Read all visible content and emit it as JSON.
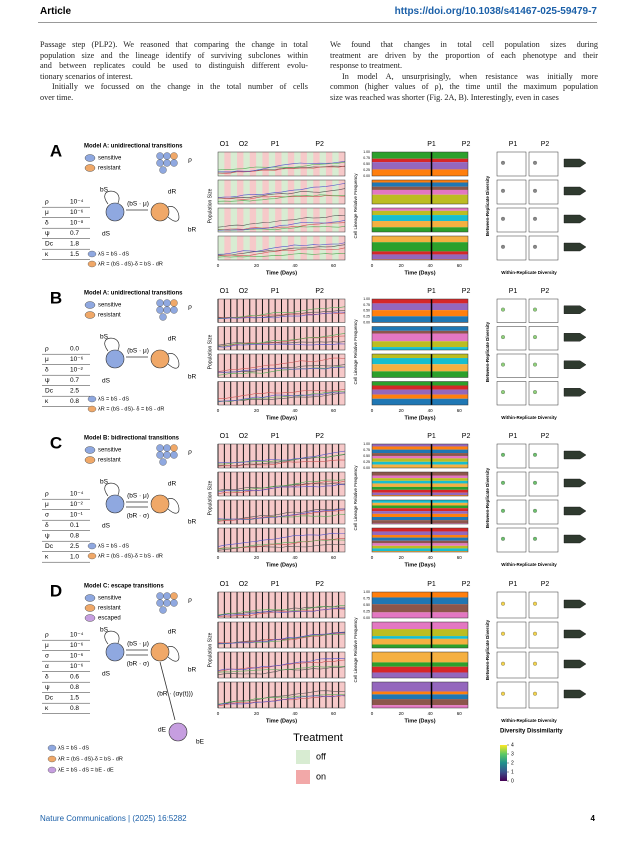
{
  "header": {
    "section": "Article",
    "doi": "https://doi.org/10.1038/s41467-025-59479-7"
  },
  "body": {
    "left": [
      {
        "lines": [
          "Passage step (PLP2). We reasoned that comparing the change in total",
          "population size and the lineage identify of surviving subclones within",
          "and between replicates could be used to distinguish different evolu-",
          "tionary scenarios of interest."
        ]
      },
      {
        "lines": [
          "Initially we focussed on the change in the total number of cells",
          "over time."
        ]
      }
    ],
    "right": [
      {
        "lines": [
          "We found that changes in total cell population sizes during",
          "treatment are driven by the proportion of each phenotype and their",
          "response to treatment."
        ]
      },
      {
        "lines": [
          "In model A, unsurprisingly, when resistance was initially more",
          "common (higher values of ρ), the time until the maximum population",
          "size was reached was shorter (Fig. 2A, B). Interestingly, even in cases"
        ]
      }
    ]
  },
  "figure": {
    "axes": {
      "population": "Population Size",
      "time": "Time (Days)",
      "lineage": "Cell Lineage Relative Frequency",
      "between": "Between-Replicate Diversity",
      "within": "Within-Replicate Diversity"
    },
    "x_ticks": [
      "0",
      "20",
      "40",
      "60"
    ],
    "lineage_ticks": [
      "1.00",
      "0.75",
      "0.50",
      "0.25",
      "0.00"
    ],
    "panels": [
      {
        "letter": "A",
        "title": "Model A: unidirectional transitions",
        "legend": [
          {
            "label": "sensitive",
            "color": "#8fa8e0"
          },
          {
            "label": "resistant",
            "color": "#f0a868"
          }
        ],
        "params": [
          [
            "ρ",
            "10⁻⁴"
          ],
          [
            "μ",
            "10⁻⁶"
          ],
          [
            "δ",
            "10⁻⁸"
          ],
          [
            "ψ",
            "0.7"
          ],
          [
            "Dc",
            "1.8"
          ],
          [
            "κ",
            "1.5"
          ]
        ],
        "schematic": {
          "rho": "ρ",
          "b_s": "bS",
          "d_s": "dS",
          "d_r": "dR",
          "b_r": "bR",
          "mu": "(bS · μ)"
        },
        "formulas": [
          "λS = bS - dS",
          "λR = (bS - dS)-δ = bS - dR"
        ],
        "pop_top": [
          "O1",
          "O2",
          "P1",
          "P2"
        ],
        "lin_top": [
          "P1",
          "P2"
        ],
        "div_top": [
          "P1",
          "P2"
        ]
      },
      {
        "letter": "B",
        "title": "Model A: unidirectional transitions",
        "legend": [
          {
            "label": "sensitive",
            "color": "#8fa8e0"
          },
          {
            "label": "resistant",
            "color": "#f0a868"
          }
        ],
        "params": [
          [
            "ρ",
            "0.0"
          ],
          [
            "μ",
            "10⁻⁶"
          ],
          [
            "δ",
            "10⁻²"
          ],
          [
            "ψ",
            "0.7"
          ],
          [
            "Dc",
            "2.5"
          ],
          [
            "κ",
            "0.8"
          ]
        ],
        "schematic": {
          "rho": "ρ",
          "b_s": "bS",
          "d_s": "dS",
          "d_r": "dR",
          "b_r": "bR",
          "mu": "(bS · μ)"
        },
        "formulas": [
          "λS = bS - dS",
          "λR = (bS - dS)- δ = bS - dR"
        ],
        "pop_top": [
          "O1",
          "O2",
          "P1",
          "P2"
        ],
        "lin_top": [
          "P1",
          "P2"
        ],
        "div_top": [
          "P1",
          "P2"
        ]
      },
      {
        "letter": "C",
        "title": "Model B: bidirectional transitions",
        "legend": [
          {
            "label": "sensitive",
            "color": "#8fa8e0"
          },
          {
            "label": "resistant",
            "color": "#f0a868"
          }
        ],
        "params": [
          [
            "ρ",
            "10⁻⁴"
          ],
          [
            "μ",
            "10⁻²"
          ],
          [
            "σ",
            "10⁻¹"
          ],
          [
            "δ",
            "0.1"
          ],
          [
            "ψ",
            "0.8"
          ],
          [
            "Dc",
            "2.5"
          ],
          [
            "κ",
            "1.0"
          ]
        ],
        "schematic": {
          "rho": "ρ",
          "b_s": "bS",
          "d_s": "dS",
          "d_r": "dR",
          "b_r": "bR",
          "mu": "(bS · μ)",
          "sigma": "(bR · σ)"
        },
        "formulas": [
          "λS = bS - dS",
          "λR = (bS - dS)-δ = bS - dR"
        ],
        "pop_top": [
          "O1",
          "O2",
          "P1",
          "P2"
        ],
        "lin_top": [
          "P1",
          "P2"
        ],
        "div_top": [
          "P1",
          "P2"
        ]
      },
      {
        "letter": "D",
        "title": "Model C: escape transitions",
        "legend": [
          {
            "label": "sensitive",
            "color": "#8fa8e0"
          },
          {
            "label": "resistant",
            "color": "#f0a868"
          },
          {
            "label": "escaped",
            "color": "#c69ee0"
          }
        ],
        "params": [
          [
            "ρ",
            "10⁻⁴"
          ],
          [
            "μ",
            "10⁻⁶"
          ],
          [
            "σ",
            "10⁻⁶"
          ],
          [
            "α",
            "10⁻⁶"
          ],
          [
            "δ",
            "0.6"
          ],
          [
            "ψ",
            "0.8"
          ],
          [
            "Dc",
            "1.5"
          ],
          [
            "κ",
            "0.8"
          ]
        ],
        "schematic": {
          "rho": "ρ",
          "b_s": "bS",
          "d_s": "dS",
          "d_r": "dR",
          "b_r": "bR",
          "mu": "(bS · μ)",
          "sigma": "(bR · σ)",
          "alpha": "(bR · (αγ(t)))",
          "d_e": "dE",
          "b_e": "bE"
        },
        "formulas": [
          "λS = bS - dS",
          "λR = (bS - dS)-δ = bS - dR",
          "λE = bS - dS = bE - dE"
        ],
        "pop_top": [
          "O1",
          "O2",
          "P1",
          "P2"
        ],
        "lin_top": [
          "P1",
          "P2"
        ],
        "div_top": [
          "P1",
          "P2"
        ]
      }
    ],
    "treatment": {
      "title": "Treatment",
      "items": [
        {
          "label": "off",
          "color": "#d8ecd2"
        },
        {
          "label": "on",
          "color": "#f2a8a8"
        }
      ]
    },
    "diversity": {
      "title": "Diversity Dissimilarity",
      "ticks": [
        4,
        3,
        2,
        1,
        0
      ]
    }
  },
  "footer": {
    "journal": "Nature Communications | (2025) 16:5282",
    "page": "4"
  }
}
